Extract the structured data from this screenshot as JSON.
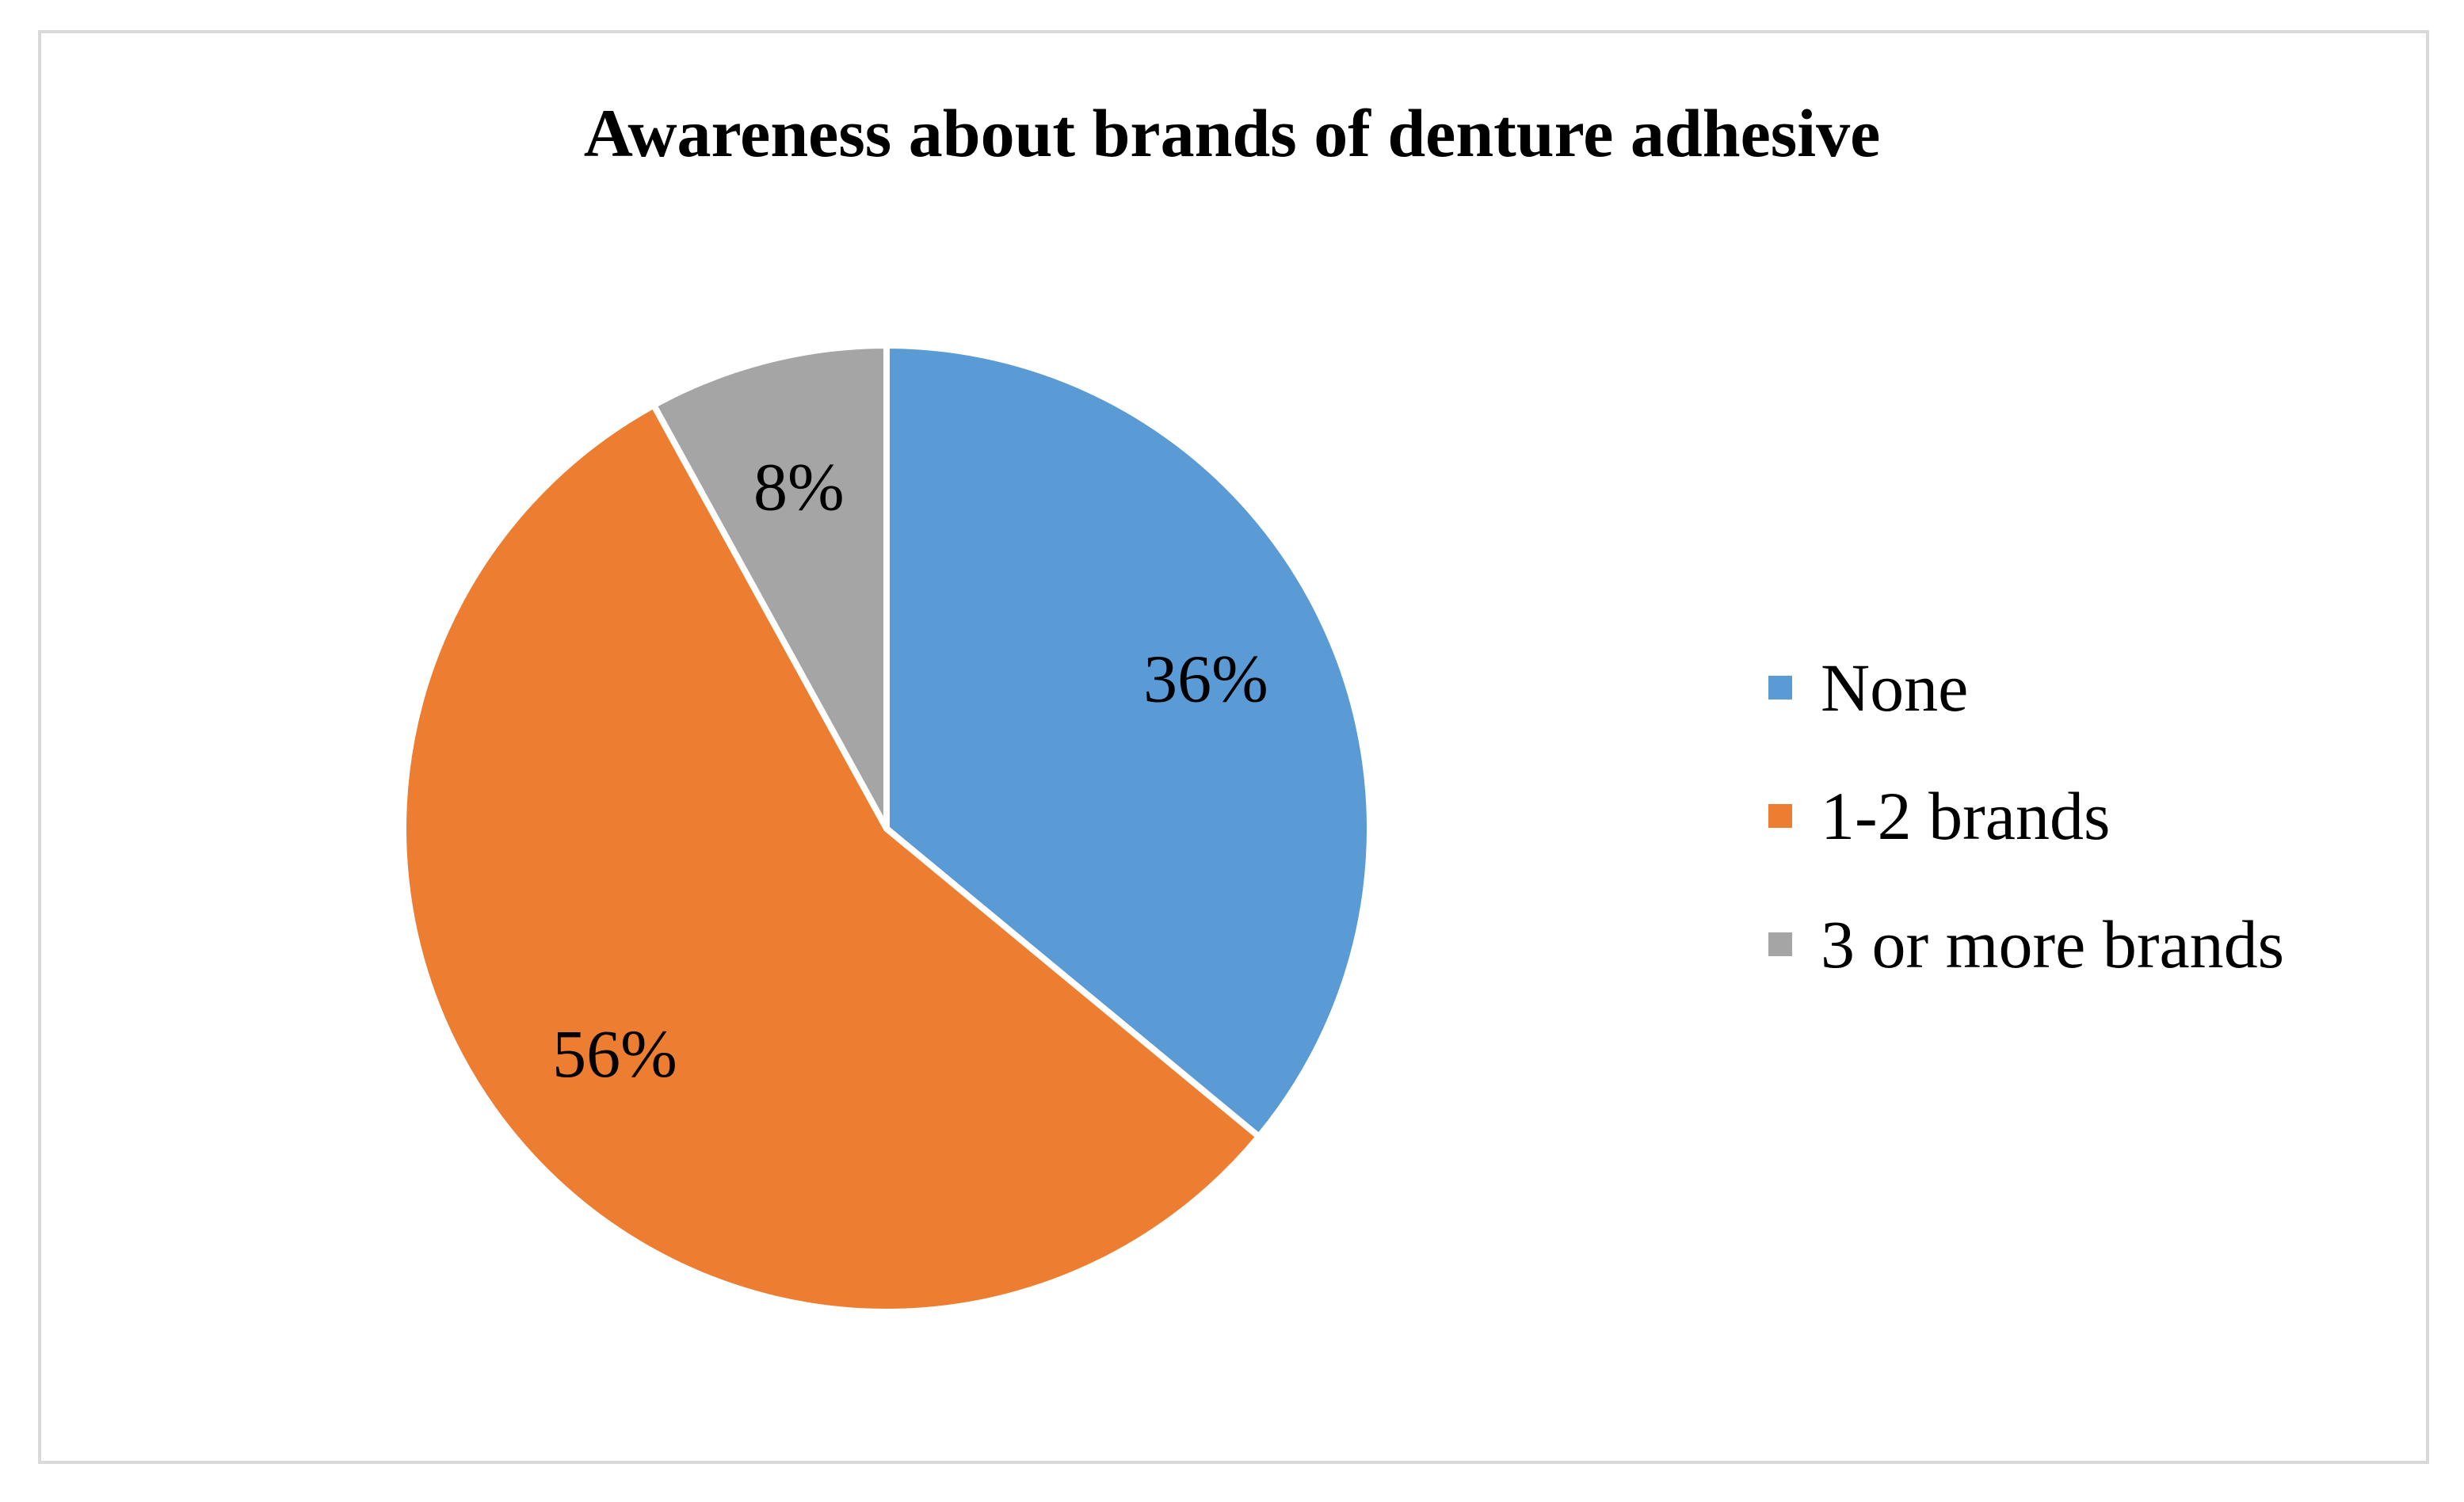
{
  "chart_data": {
    "type": "pie",
    "title": "Awareness about brands of denture adhesive",
    "categories": [
      "None",
      "1-2 brands",
      "3 or more brands"
    ],
    "values": [
      36,
      56,
      8
    ],
    "labels": [
      "36%",
      "56%",
      "8%"
    ],
    "colors": [
      "#5b9bd5",
      "#ed7d31",
      "#a5a5a5"
    ],
    "legend_position": "right"
  }
}
